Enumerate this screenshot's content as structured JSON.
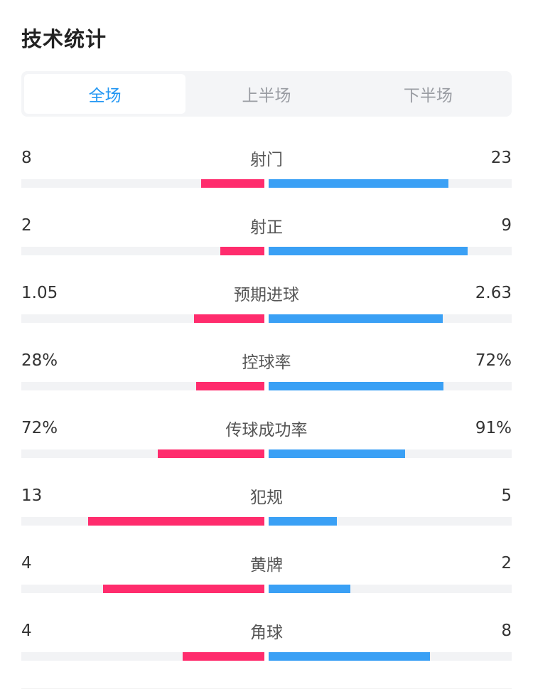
{
  "title": "技术统计",
  "tabs": [
    {
      "label": "全场",
      "active": true
    },
    {
      "label": "上半场",
      "active": false
    },
    {
      "label": "下半场",
      "active": false
    }
  ],
  "colors": {
    "home": "#ff2c6d",
    "away": "#3aa0f5",
    "active_tab": "#2196f3"
  },
  "stats": [
    {
      "label": "射门",
      "home": "8",
      "away": "23",
      "home_fill": 0.26,
      "away_fill": 0.74
    },
    {
      "label": "射正",
      "home": "2",
      "away": "9",
      "home_fill": 0.18,
      "away_fill": 0.82
    },
    {
      "label": "预期进球",
      "home": "1.05",
      "away": "2.63",
      "home_fill": 0.29,
      "away_fill": 0.715
    },
    {
      "label": "控球率",
      "home": "28%",
      "away": "72%",
      "home_fill": 0.28,
      "away_fill": 0.72
    },
    {
      "label": "传球成功率",
      "home": "72%",
      "away": "91%",
      "home_fill": 0.44,
      "away_fill": 0.56
    },
    {
      "label": "犯规",
      "home": "13",
      "away": "5",
      "home_fill": 0.725,
      "away_fill": 0.28
    },
    {
      "label": "黄牌",
      "home": "4",
      "away": "2",
      "home_fill": 0.665,
      "away_fill": 0.335
    },
    {
      "label": "角球",
      "home": "4",
      "away": "8",
      "home_fill": 0.335,
      "away_fill": 0.665
    }
  ]
}
